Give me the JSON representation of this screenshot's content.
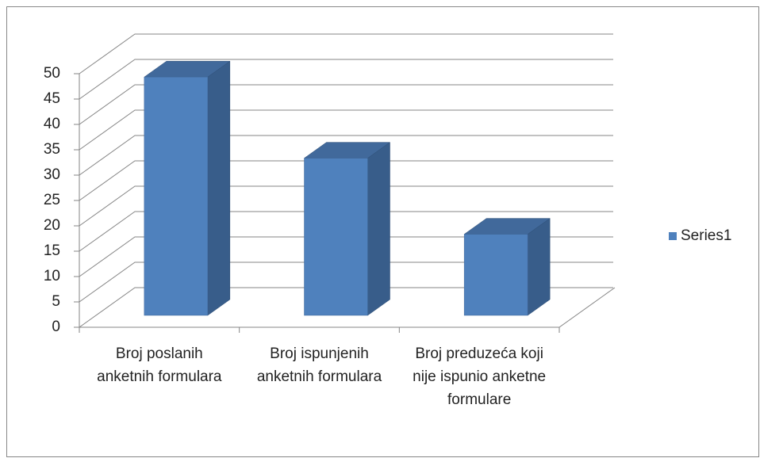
{
  "chart_data": {
    "type": "bar3d",
    "categories": [
      "Broj poslanih anketnih formulara",
      "Broj ispunjenih anketnih formulara",
      "Broj preduzeća koji nije ispunio anketne formulare"
    ],
    "series": [
      {
        "name": "Series1",
        "color": "#4f81bd",
        "values": [
          47,
          31,
          16
        ]
      }
    ],
    "ylim": [
      0,
      50
    ],
    "yticks": [
      0,
      5,
      10,
      15,
      20,
      25,
      30,
      35,
      40,
      45,
      50
    ],
    "grid": true,
    "legend": "right"
  }
}
